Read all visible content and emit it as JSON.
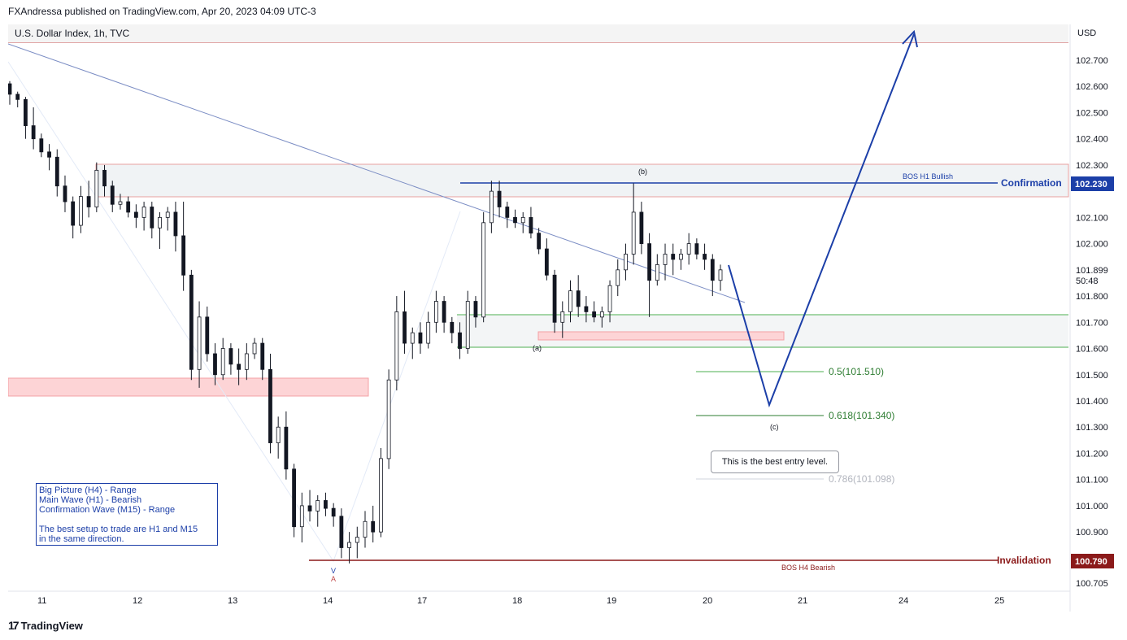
{
  "publisher": "FXAndressa published on TradingView.com, Apr 20, 2023 04:09 UTC-3",
  "symbol": "U.S. Dollar Index, 1h, TVC",
  "currency": "USD",
  "brand": "TradingView",
  "countdown": "50:48",
  "colors": {
    "candle": "#131722",
    "trend_line": "#7b8dc4",
    "projection": "#1c3fa8",
    "confirmation": "#1c3fa8",
    "invalidation": "#8b1a1a",
    "fib_green": "#2e7d32",
    "demand_zone": "#fdd4d6",
    "range_zone": "#f0f3f5"
  },
  "info_box": {
    "line1": "Big Picture (H4) - Range",
    "line2": "Main Wave (H1) - Bearish",
    "line3": "Confirmation Wave (M15) - Range",
    "line4": "The best setup to trade are H1 and M15",
    "line5": "in the same direction."
  },
  "callout": "This is the best entry level.",
  "chart_data": {
    "type": "candlestick",
    "title": "U.S. Dollar Index, 1h, TVC",
    "x_tick_labels": [
      "11",
      "12",
      "13",
      "14",
      "17",
      "18",
      "19",
      "20",
      "21",
      "24",
      "25"
    ],
    "y_tick_labels": [
      "102.700",
      "102.600",
      "102.500",
      "102.400",
      "102.300",
      "102.100",
      "102.000",
      "101.899",
      "101.800",
      "101.700",
      "101.600",
      "101.500",
      "101.400",
      "101.300",
      "101.200",
      "101.100",
      "101.000",
      "100.900",
      "100.705"
    ],
    "ylim": [
      100.705,
      102.8
    ],
    "last_price": 101.899,
    "grid": false,
    "annotations": {
      "confirmation": {
        "label": "Confirmation",
        "price": 102.23,
        "price_label": "102.230",
        "note": "BOS H1 Bullish"
      },
      "invalidation": {
        "label": "Invalidation",
        "price": 100.79,
        "price_label": "100.790",
        "note": "BOS H4 Bearish"
      },
      "fib_levels": [
        {
          "label": "0.5(101.510)",
          "price": 101.51
        },
        {
          "label": "0.618(101.340)",
          "price": 101.34
        },
        {
          "label": "0.786(101.098)",
          "price": 101.098
        }
      ],
      "wave_labels": [
        "(a)",
        "(b)",
        "(c)"
      ],
      "low_markers": [
        "V",
        "A"
      ]
    },
    "series": [
      {
        "name": "candles",
        "ohlc": [
          [
            102.61,
            102.62,
            102.53,
            102.57
          ],
          [
            102.57,
            102.58,
            102.52,
            102.55
          ],
          [
            102.55,
            102.56,
            102.4,
            102.45
          ],
          [
            102.45,
            102.52,
            102.36,
            102.4
          ],
          [
            102.4,
            102.42,
            102.33,
            102.35
          ],
          [
            102.35,
            102.38,
            102.28,
            102.33
          ],
          [
            102.33,
            102.36,
            102.18,
            102.22
          ],
          [
            102.22,
            102.26,
            102.12,
            102.16
          ],
          [
            102.16,
            102.18,
            102.02,
            102.07
          ],
          [
            102.07,
            102.22,
            102.04,
            102.18
          ],
          [
            102.18,
            102.24,
            102.1,
            102.14
          ],
          [
            102.14,
            102.31,
            102.12,
            102.28
          ],
          [
            102.28,
            102.3,
            102.18,
            102.22
          ],
          [
            102.22,
            102.24,
            102.12,
            102.15
          ],
          [
            102.15,
            102.19,
            102.13,
            102.16
          ],
          [
            102.16,
            102.18,
            102.1,
            102.12
          ],
          [
            102.12,
            102.15,
            102.06,
            102.1
          ],
          [
            102.1,
            102.16,
            102.05,
            102.14
          ],
          [
            102.14,
            102.16,
            102.02,
            102.06
          ],
          [
            102.06,
            102.12,
            101.98,
            102.1
          ],
          [
            102.1,
            102.14,
            102.05,
            102.12
          ],
          [
            102.12,
            102.16,
            101.97,
            102.03
          ],
          [
            102.03,
            102.16,
            101.82,
            101.88
          ],
          [
            101.88,
            101.9,
            101.48,
            101.52
          ],
          [
            101.52,
            101.78,
            101.45,
            101.72
          ],
          [
            101.72,
            101.76,
            101.55,
            101.58
          ],
          [
            101.58,
            101.62,
            101.46,
            101.5
          ],
          [
            101.5,
            101.64,
            101.48,
            101.6
          ],
          [
            101.6,
            101.62,
            101.5,
            101.54
          ],
          [
            101.54,
            101.6,
            101.46,
            101.52
          ],
          [
            101.52,
            101.62,
            101.48,
            101.58
          ],
          [
            101.58,
            101.64,
            101.56,
            101.62
          ],
          [
            101.62,
            101.64,
            101.48,
            101.52
          ],
          [
            101.52,
            101.58,
            101.2,
            101.24
          ],
          [
            101.24,
            101.34,
            101.18,
            101.3
          ],
          [
            101.3,
            101.36,
            101.1,
            101.14
          ],
          [
            101.14,
            101.16,
            100.88,
            100.92
          ],
          [
            100.92,
            101.05,
            100.86,
            101.0
          ],
          [
            101.0,
            101.06,
            100.94,
            100.98
          ],
          [
            100.98,
            101.04,
            100.92,
            101.02
          ],
          [
            101.02,
            101.05,
            100.96,
            100.99
          ],
          [
            100.99,
            101.01,
            100.92,
            100.96
          ],
          [
            100.96,
            100.99,
            100.8,
            100.84
          ],
          [
            100.84,
            100.9,
            100.78,
            100.86
          ],
          [
            100.86,
            100.92,
            100.8,
            100.88
          ],
          [
            100.88,
            100.98,
            100.84,
            100.94
          ],
          [
            100.94,
            101.0,
            100.86,
            100.9
          ],
          [
            100.9,
            101.22,
            100.88,
            101.18
          ],
          [
            101.18,
            101.52,
            101.14,
            101.48
          ],
          [
            101.48,
            101.8,
            101.44,
            101.74
          ],
          [
            101.74,
            101.82,
            101.58,
            101.62
          ],
          [
            101.62,
            101.68,
            101.56,
            101.66
          ],
          [
            101.66,
            101.7,
            101.58,
            101.62
          ],
          [
            101.62,
            101.74,
            101.6,
            101.7
          ],
          [
            101.7,
            101.82,
            101.66,
            101.78
          ],
          [
            101.78,
            101.8,
            101.66,
            101.7
          ],
          [
            101.7,
            101.72,
            101.62,
            101.66
          ],
          [
            101.66,
            101.7,
            101.56,
            101.6
          ],
          [
            101.6,
            101.82,
            101.58,
            101.78
          ],
          [
            101.78,
            101.8,
            101.68,
            101.72
          ],
          [
            101.72,
            102.12,
            101.7,
            102.08
          ],
          [
            102.08,
            102.24,
            102.04,
            102.2
          ],
          [
            102.2,
            102.24,
            102.1,
            102.14
          ],
          [
            102.14,
            102.16,
            102.06,
            102.1
          ],
          [
            102.1,
            102.13,
            102.06,
            102.08
          ],
          [
            102.08,
            102.12,
            102.04,
            102.1
          ],
          [
            102.1,
            102.14,
            102.02,
            102.04
          ],
          [
            102.04,
            102.06,
            101.96,
            101.98
          ],
          [
            101.98,
            102.02,
            101.86,
            101.88
          ],
          [
            101.88,
            101.9,
            101.66,
            101.7
          ],
          [
            101.7,
            101.78,
            101.64,
            101.74
          ],
          [
            101.74,
            101.86,
            101.7,
            101.82
          ],
          [
            101.82,
            101.88,
            101.72,
            101.76
          ],
          [
            101.76,
            101.8,
            101.7,
            101.74
          ],
          [
            101.74,
            101.78,
            101.7,
            101.72
          ],
          [
            101.72,
            101.76,
            101.68,
            101.74
          ],
          [
            101.74,
            101.86,
            101.7,
            101.84
          ],
          [
            101.84,
            101.94,
            101.8,
            101.9
          ],
          [
            101.9,
            102.0,
            101.86,
            101.96
          ],
          [
            101.96,
            102.23,
            101.92,
            102.12
          ],
          [
            102.12,
            102.16,
            101.96,
            102.0
          ],
          [
            102.0,
            102.04,
            101.72,
            101.86
          ],
          [
            101.86,
            101.96,
            101.84,
            101.92
          ],
          [
            101.92,
            102.0,
            101.86,
            101.96
          ],
          [
            101.96,
            102.0,
            101.88,
            101.94
          ],
          [
            101.94,
            101.98,
            101.9,
            101.96
          ],
          [
            101.96,
            102.04,
            101.92,
            102.0
          ],
          [
            102.0,
            102.02,
            101.94,
            101.96
          ],
          [
            101.96,
            102.0,
            101.9,
            101.94
          ],
          [
            101.94,
            101.96,
            101.8,
            101.86
          ],
          [
            101.86,
            101.92,
            101.82,
            101.9
          ]
        ]
      },
      {
        "name": "projection",
        "points": [
          [
            101.92,
            102.23
          ],
          [
            101.38,
            102.0
          ],
          [
            102.78,
            102.78
          ]
        ]
      }
    ]
  }
}
